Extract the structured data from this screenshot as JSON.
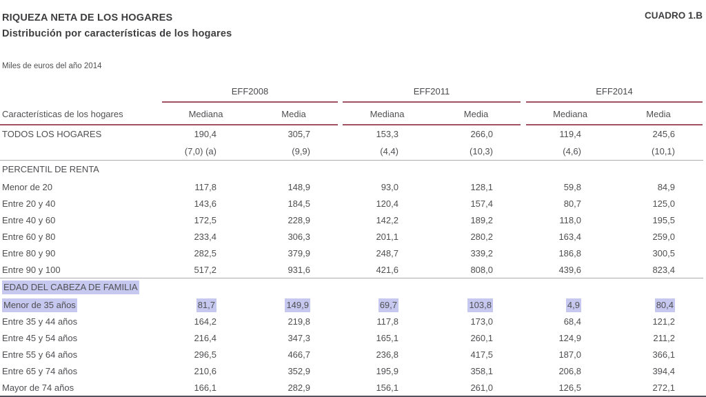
{
  "header": {
    "title": "RIQUEZA NETA DE LOS HOGARES",
    "subtitle": "Distribución por características de los hogares",
    "cuadro": "CUADRO 1.B",
    "units": "Miles de euros del año 2014"
  },
  "table": {
    "stub_header": "Características de los hogares",
    "groups": [
      "EFF2008",
      "EFF2011",
      "EFF2014"
    ],
    "subcolumns": [
      "Mediana",
      "Media"
    ],
    "total": {
      "label": "TODOS LOS HOGARES",
      "values": [
        "190,4",
        "305,7",
        "153,3",
        "266,0",
        "119,4",
        "245,6"
      ],
      "notes": [
        "(7,0) (a)",
        "(9,9)",
        "(4,4)",
        "(10,3)",
        "(4,6)",
        "(10,1)"
      ]
    },
    "sections": [
      {
        "title": "PERCENTIL DE RENTA",
        "highlighted": false,
        "rows": [
          {
            "label": "Menor de 20",
            "highlighted": false,
            "values": [
              "117,8",
              "148,9",
              "93,0",
              "128,1",
              "59,8",
              "84,9"
            ]
          },
          {
            "label": "Entre 20 y 40",
            "highlighted": false,
            "values": [
              "143,6",
              "184,5",
              "120,4",
              "157,4",
              "80,7",
              "125,0"
            ]
          },
          {
            "label": "Entre 40 y 60",
            "highlighted": false,
            "values": [
              "172,5",
              "228,9",
              "142,2",
              "189,2",
              "118,0",
              "195,5"
            ]
          },
          {
            "label": "Entre 60 y 80",
            "highlighted": false,
            "values": [
              "233,4",
              "306,3",
              "201,1",
              "280,2",
              "163,4",
              "259,0"
            ]
          },
          {
            "label": "Entre 80 y 90",
            "highlighted": false,
            "values": [
              "282,5",
              "379,9",
              "248,7",
              "339,2",
              "186,8",
              "300,5"
            ]
          },
          {
            "label": "Entre 90 y 100",
            "highlighted": false,
            "values": [
              "517,2",
              "931,6",
              "421,6",
              "808,0",
              "439,6",
              "823,4"
            ]
          }
        ]
      },
      {
        "title": "EDAD DEL CABEZA DE FAMILIA",
        "highlighted": true,
        "rows": [
          {
            "label": "Menor de 35 años",
            "highlighted": true,
            "values": [
              "81,7",
              "149,9",
              "69,7",
              "103,8",
              "4,9",
              "80,4"
            ]
          },
          {
            "label": "Entre 35 y 44 años",
            "highlighted": false,
            "values": [
              "164,2",
              "219,8",
              "117,8",
              "173,0",
              "68,4",
              "121,2"
            ]
          },
          {
            "label": "Entre 45 y 54 años",
            "highlighted": false,
            "values": [
              "216,4",
              "347,3",
              "165,1",
              "260,1",
              "124,9",
              "211,2"
            ]
          },
          {
            "label": "Entre 55 y 64 años",
            "highlighted": false,
            "values": [
              "296,5",
              "466,7",
              "236,8",
              "417,5",
              "187,0",
              "366,1"
            ]
          },
          {
            "label": "Entre 65 y 74 años",
            "highlighted": false,
            "values": [
              "210,6",
              "352,9",
              "195,9",
              "358,1",
              "206,8",
              "394,4"
            ]
          },
          {
            "label": "Mayor de 74 años",
            "highlighted": false,
            "values": [
              "166,1",
              "282,9",
              "156,1",
              "261,0",
              "126,5",
              "272,1"
            ]
          }
        ]
      }
    ]
  },
  "colors": {
    "accent_rule": "#a05060",
    "section_separator": "#ababaf",
    "bottom_rule": "#52525e",
    "selection_highlight": "#c6c8ef",
    "text": "#4f4f52"
  }
}
